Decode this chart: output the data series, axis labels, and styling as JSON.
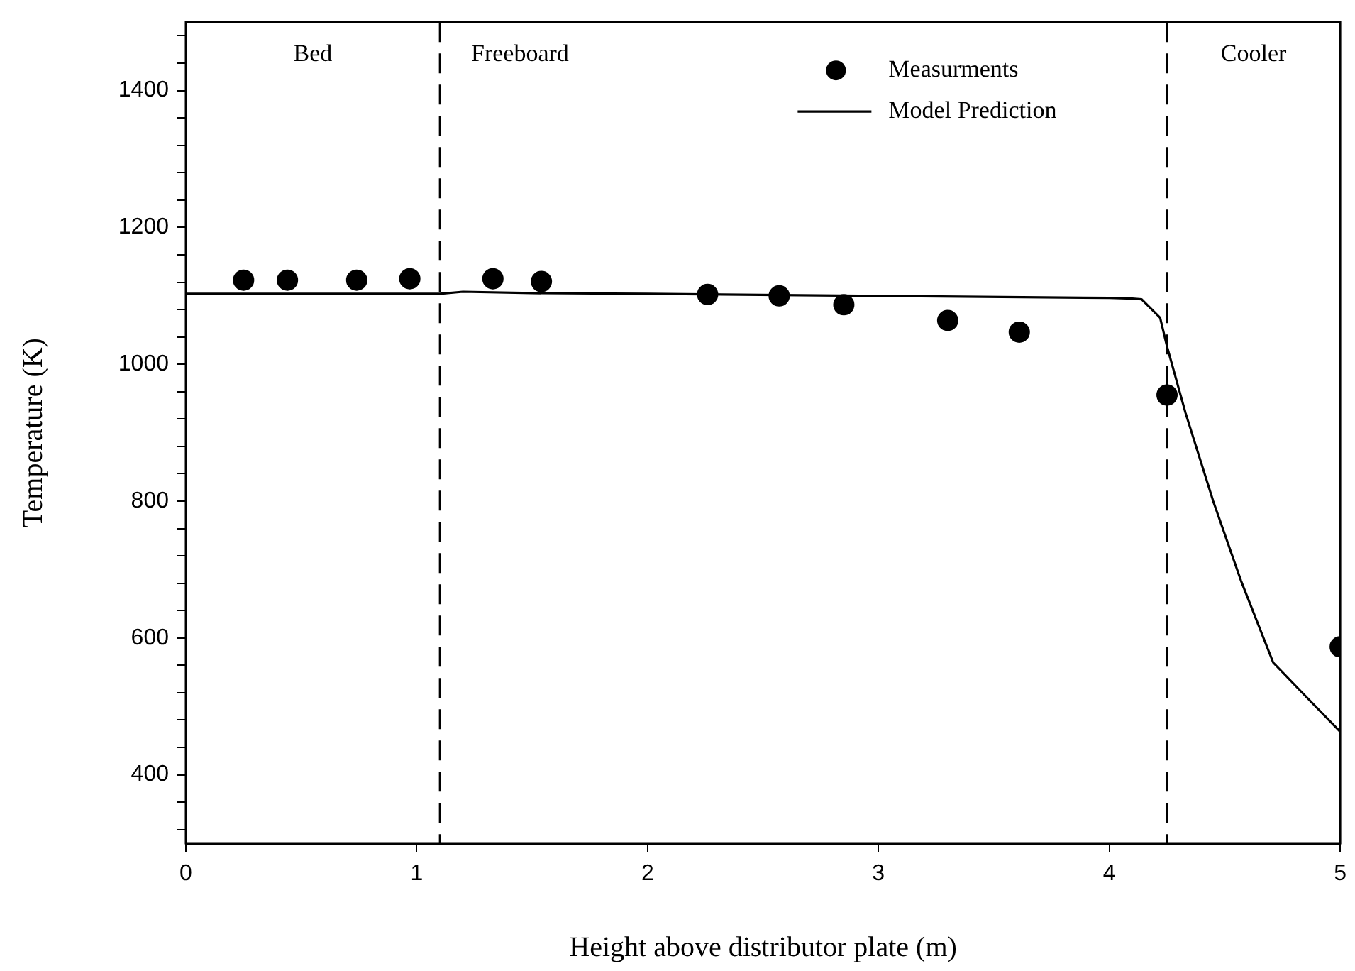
{
  "chart_data": {
    "type": "scatter",
    "xlabel": "Height above distributor plate (m)",
    "ylabel": "Temperature (K)",
    "xlim": [
      0,
      5
    ],
    "xticks": [
      0,
      1,
      2,
      3,
      4,
      5
    ],
    "ylim": [
      300,
      1500
    ],
    "yticks": [
      {
        "value": 320,
        "label": null
      },
      {
        "value": 360,
        "label": null
      },
      400,
      {
        "value": 440,
        "label": null
      },
      {
        "value": 480,
        "label": null
      },
      {
        "value": 520,
        "label": null
      },
      {
        "value": 560,
        "label": null
      },
      600,
      {
        "value": 640,
        "label": null
      },
      {
        "value": 680,
        "label": null
      },
      {
        "value": 720,
        "label": null
      },
      {
        "value": 760,
        "label": null
      },
      800,
      {
        "value": 840,
        "label": null
      },
      {
        "value": 880,
        "label": null
      },
      {
        "value": 920,
        "label": null
      },
      {
        "value": 960,
        "label": null
      },
      1000,
      {
        "value": 1040,
        "label": null
      },
      {
        "value": 1080,
        "label": null
      },
      {
        "value": 1120,
        "label": null
      },
      {
        "value": 1160,
        "label": null
      },
      1200,
      {
        "value": 1240,
        "label": null
      },
      {
        "value": 1280,
        "label": null
      },
      {
        "value": 1320,
        "label": null
      },
      {
        "value": 1360,
        "label": null
      },
      1400,
      {
        "value": 1440,
        "label": null
      },
      {
        "value": 1480,
        "label": null
      }
    ],
    "grid": false,
    "legend": "top right",
    "series": [
      {
        "name": "Measurments",
        "marker": "circle",
        "color": "#000000",
        "x": [
          0.25,
          0.44,
          0.74,
          0.97,
          1.33,
          1.54,
          2.26,
          2.57,
          2.85,
          3.3,
          3.61,
          4.25,
          5.0
        ],
        "values": [
          1123,
          1123,
          1123,
          1125,
          1125,
          1121,
          1102,
          1100,
          1087,
          1064,
          1047,
          955,
          587
        ]
      },
      {
        "name": "Model Prediction",
        "type": "line",
        "marker": "none",
        "line_style": "solid",
        "color": "#000000",
        "x": [
          0,
          0.5,
          1.0,
          1.1,
          1.2,
          1.5,
          2.0,
          3.0,
          4.0,
          4.1,
          4.14,
          4.22,
          4.25,
          4.33,
          4.45,
          4.57,
          4.71,
          4.83,
          5.0
        ],
        "values": [
          1103,
          1103,
          1103,
          1103,
          1106,
          1104,
          1103,
          1100,
          1097,
          1096,
          1095,
          1068,
          1026,
          929,
          800,
          684,
          564,
          522,
          463
        ]
      }
    ],
    "ref_lines": [
      {
        "axis": "x",
        "value": 1.1,
        "line_style": "dashed",
        "color": "#000000"
      },
      {
        "axis": "x",
        "value": 4.25,
        "line_style": "dashed",
        "color": "#000000"
      }
    ],
    "annotations": [
      "Bed",
      "Freeboard",
      "Cooler"
    ]
  }
}
